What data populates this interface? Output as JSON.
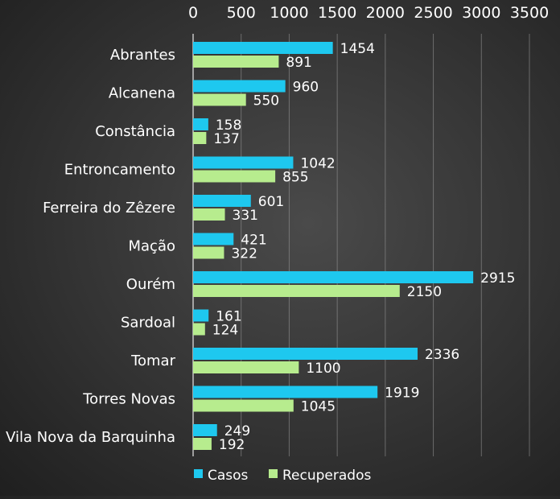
{
  "chart_data": {
    "type": "bar",
    "orientation": "horizontal",
    "categories": [
      "Abrantes",
      "Alcanena",
      "Constância",
      "Entroncamento",
      "Ferreira do Zêzere",
      "Mação",
      "Ourém",
      "Sardoal",
      "Tomar",
      "Torres Novas",
      "Vila Nova da Barquinha"
    ],
    "series": [
      {
        "name": "Casos",
        "color": "#1ec8ef",
        "values": [
          1454,
          960,
          158,
          1042,
          601,
          421,
          2915,
          161,
          2336,
          1919,
          249
        ]
      },
      {
        "name": "Recuperados",
        "color": "#b7ec8e",
        "values": [
          891,
          550,
          137,
          855,
          331,
          322,
          2150,
          124,
          1100,
          1045,
          192
        ]
      }
    ],
    "xlim": [
      0,
      3500
    ],
    "ticks": [
      0,
      500,
      1000,
      1500,
      2000,
      2500,
      3000,
      3500
    ],
    "tick_labels": [
      "0",
      "500",
      "1000",
      "1500",
      "2000",
      "2500",
      "3000",
      "3500"
    ],
    "x_axis_position": "top",
    "grid": true,
    "data_labels": true,
    "legend_position": "bottom"
  }
}
